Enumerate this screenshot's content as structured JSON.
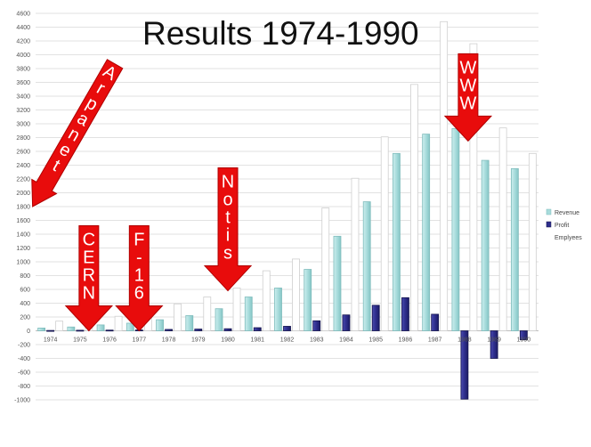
{
  "chart_data": {
    "type": "bar",
    "title": "Results 1974-1990",
    "categories": [
      "1974",
      "1975",
      "1976",
      "1977",
      "1978",
      "1979",
      "1980",
      "1981",
      "1982",
      "1983",
      "1984",
      "1985",
      "1986",
      "1987",
      "1988",
      "1989",
      "1990"
    ],
    "series": [
      {
        "name": "Revenue",
        "color": "#a8dcdc",
        "values": [
          40,
          55,
          85,
          110,
          160,
          220,
          320,
          490,
          620,
          890,
          1370,
          1870,
          2570,
          2850,
          2930,
          2470,
          2350
        ]
      },
      {
        "name": "Profit",
        "color": "#2e2e8c",
        "values": [
          5,
          8,
          10,
          12,
          20,
          25,
          30,
          45,
          65,
          145,
          230,
          370,
          480,
          240,
          -990,
          -400,
          -130
        ]
      },
      {
        "name": "Emplyees",
        "color": "#ffffff",
        "values": [
          140,
          180,
          210,
          250,
          390,
          490,
          620,
          870,
          1040,
          1780,
          2210,
          2810,
          3570,
          4480,
          4160,
          2940,
          2570
        ]
      }
    ],
    "ylim": [
      -1000,
      4600
    ],
    "yticks": [
      4600,
      4400,
      4200,
      4000,
      3800,
      3600,
      3400,
      3200,
      3000,
      2800,
      2600,
      2400,
      2200,
      2000,
      1800,
      1600,
      1400,
      1200,
      1000,
      800,
      600,
      400,
      200,
      0,
      -200,
      -400,
      -600,
      -800,
      -1000
    ],
    "grid": true,
    "legend_position": "right",
    "annotations": [
      {
        "text": "Arpanet",
        "category": "1974",
        "value": 1800,
        "direction": "down-left"
      },
      {
        "text": "CERN",
        "category": "1975",
        "value": 0,
        "direction": "down"
      },
      {
        "text": "F-16",
        "category": "1977",
        "value": 0,
        "direction": "down"
      },
      {
        "text": "Notis",
        "category": "1980",
        "value": 580,
        "direction": "down"
      },
      {
        "text": "WWW",
        "category": "1988",
        "value": 2750,
        "direction": "down"
      }
    ]
  }
}
